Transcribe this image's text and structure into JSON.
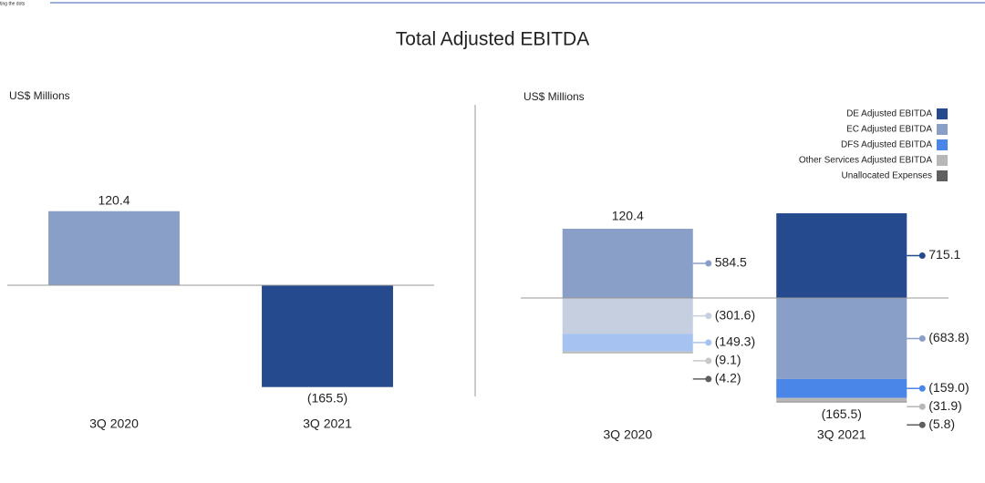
{
  "header_note": "ting the dots",
  "title": "Total Adjusted EBITDA",
  "chart_data": [
    {
      "type": "bar",
      "y_label": "US$ Millions",
      "categories": [
        "3Q 2020",
        "3Q 2021"
      ],
      "values": [
        120.4,
        -165.5
      ],
      "value_labels": [
        "120.4",
        "(165.5)"
      ],
      "colors": [
        "#8a9fc7",
        "#264a8e"
      ],
      "ylim": [
        -200,
        200
      ]
    },
    {
      "type": "stacked_bar",
      "y_label": "US$ Millions",
      "categories": [
        "3Q 2020",
        "3Q 2021"
      ],
      "series": [
        {
          "name": "DE Adjusted EBITDA",
          "color": "#264a8e",
          "colors": [
            "#c5cfe0",
            "#264a8e"
          ],
          "values": [
            -301.6,
            715.1
          ],
          "value_labels": [
            "(301.6)",
            "715.1"
          ]
        },
        {
          "name": "EC Adjusted EBITDA",
          "color": "#8a9fc7",
          "colors": [
            "#8a9fc7",
            "#8a9fc7"
          ],
          "values": [
            584.5,
            -683.8
          ],
          "value_labels": [
            "584.5",
            "(683.8)"
          ]
        },
        {
          "name": "DFS Adjusted EBITDA",
          "color": "#4a86e8",
          "colors": [
            "#a5c2f0",
            "#4a86e8"
          ],
          "values": [
            -149.3,
            -159.0
          ],
          "value_labels": [
            "(149.3)",
            "(159.0)"
          ]
        },
        {
          "name": "Other Services Adjusted EBITDA",
          "color": "#b7b7b7",
          "colors": [
            "#c8c8c8",
            "#b7b7b7"
          ],
          "values": [
            -9.1,
            -31.9
          ],
          "value_labels": [
            "(9.1)",
            "(31.9)"
          ]
        },
        {
          "name": "Unallocated Expenses",
          "color": "#5f5f5f",
          "colors": [
            "#5f5f5f",
            "#5f5f5f"
          ],
          "values": [
            -4.2,
            -5.8
          ],
          "value_labels": [
            "(4.2)",
            "(5.8)"
          ]
        }
      ],
      "totals": [
        120.4,
        -165.5
      ],
      "total_labels": [
        "120.4",
        "(165.5)"
      ],
      "ylim": [
        -1000,
        1000
      ],
      "legend": "upper right"
    }
  ]
}
